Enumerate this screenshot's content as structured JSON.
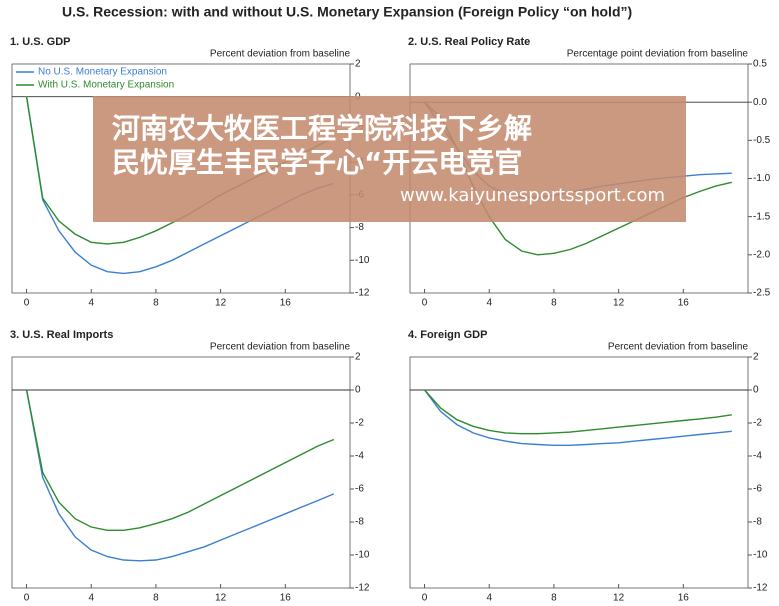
{
  "title": "U.S. Recession: with and without U.S. Monetary Expansion (Foreign Policy “on hold”)",
  "chart_data": [
    {
      "type": "line",
      "title": "1. U.S. GDP",
      "y_label": "Percent deviation from baseline",
      "x": [
        0,
        1,
        2,
        3,
        4,
        5,
        6,
        7,
        8,
        9,
        10,
        11,
        12,
        13,
        14,
        15,
        16,
        17,
        18,
        19
      ],
      "xlim": [
        -0.9,
        20
      ],
      "xticks": [
        0,
        4,
        8,
        12,
        16
      ],
      "ylim": [
        -12,
        2
      ],
      "yticks": [
        2,
        0,
        -2,
        -4,
        -6,
        -8,
        -10,
        -12
      ],
      "legend": "upper left",
      "series": [
        {
          "name": "No U.S. Monetary Expansion",
          "color": "#3a7fd0",
          "values": [
            0,
            -6.3,
            -8.2,
            -9.5,
            -10.3,
            -10.7,
            -10.8,
            -10.7,
            -10.4,
            -10.0,
            -9.5,
            -9.0,
            -8.5,
            -8.0,
            -7.5,
            -7.0,
            -6.5,
            -6.0,
            -5.6,
            -5.3
          ]
        },
        {
          "name": "With U.S. Monetary Expansion",
          "color": "#2e8b2e",
          "values": [
            0,
            -6.2,
            -7.6,
            -8.4,
            -8.9,
            -9.0,
            -8.9,
            -8.6,
            -8.2,
            -7.7,
            -7.2,
            -6.6,
            -6.0,
            -5.5,
            -5.0,
            -4.5,
            -4.0,
            -3.5,
            -3.0,
            -2.5
          ]
        }
      ]
    },
    {
      "type": "line",
      "title": "2. U.S. Real Policy Rate",
      "y_label": "Percentage point deviation from baseline",
      "x": [
        0,
        1,
        2,
        3,
        4,
        5,
        6,
        7,
        8,
        9,
        10,
        11,
        12,
        13,
        14,
        15,
        16,
        17,
        18,
        19
      ],
      "xlim": [
        -0.9,
        20
      ],
      "xticks": [
        0,
        4,
        8,
        12,
        16
      ],
      "ylim": [
        -2.5,
        0.5
      ],
      "yticks": [
        {
          "value": 0.5,
          "label": "0.5"
        },
        {
          "value": 0,
          "label": "0.0"
        },
        {
          "value": -0.5,
          "label": "-0.5"
        },
        {
          "value": -1,
          "label": "-1.0"
        },
        {
          "value": -1.5,
          "label": "-1.5"
        },
        {
          "value": -2,
          "label": "-2.0"
        },
        {
          "value": -2.5,
          "label": "-2.5"
        }
      ],
      "series": [
        {
          "color": "#3a7fd0",
          "values": [
            0,
            -0.3,
            -0.6,
            -0.9,
            -1.1,
            -1.2,
            -1.25,
            -1.25,
            -1.22,
            -1.18,
            -1.14,
            -1.1,
            -1.07,
            -1.04,
            -1.01,
            -0.99,
            -0.97,
            -0.95,
            -0.94,
            -0.93
          ]
        },
        {
          "color": "#2e8b2e",
          "values": [
            0,
            -0.2,
            -0.6,
            -1.1,
            -1.5,
            -1.8,
            -1.95,
            -2.0,
            -1.98,
            -1.93,
            -1.85,
            -1.75,
            -1.65,
            -1.55,
            -1.45,
            -1.35,
            -1.25,
            -1.17,
            -1.1,
            -1.05
          ]
        }
      ]
    },
    {
      "type": "line",
      "title": "3. U.S. Real Imports",
      "y_label": "Percent deviation from baseline",
      "x": [
        0,
        1,
        2,
        3,
        4,
        5,
        6,
        7,
        8,
        9,
        10,
        11,
        12,
        13,
        14,
        15,
        16,
        17,
        18,
        19
      ],
      "xlim": [
        -0.9,
        20
      ],
      "xticks": [
        0,
        4,
        8,
        12,
        16
      ],
      "ylim": [
        -12,
        2
      ],
      "yticks": [
        2,
        0,
        -2,
        -4,
        -6,
        -8,
        -10,
        -12
      ],
      "series": [
        {
          "color": "#3a7fd0",
          "values": [
            0,
            -5.3,
            -7.5,
            -8.9,
            -9.7,
            -10.1,
            -10.3,
            -10.35,
            -10.3,
            -10.1,
            -9.8,
            -9.5,
            -9.1,
            -8.7,
            -8.3,
            -7.9,
            -7.5,
            -7.1,
            -6.7,
            -6.3
          ]
        },
        {
          "color": "#2e8b2e",
          "values": [
            0,
            -5.0,
            -6.8,
            -7.8,
            -8.3,
            -8.5,
            -8.5,
            -8.35,
            -8.1,
            -7.8,
            -7.4,
            -6.9,
            -6.4,
            -5.9,
            -5.4,
            -4.9,
            -4.4,
            -3.9,
            -3.4,
            -3.0
          ]
        }
      ]
    },
    {
      "type": "line",
      "title": "4. Foreign GDP",
      "y_label": "Percent deviation from baseline",
      "x": [
        0,
        1,
        2,
        3,
        4,
        5,
        6,
        7,
        8,
        9,
        10,
        11,
        12,
        13,
        14,
        15,
        16,
        17,
        18,
        19
      ],
      "xlim": [
        -0.9,
        20
      ],
      "xticks": [
        0,
        4,
        8,
        12,
        16
      ],
      "ylim": [
        -12,
        2
      ],
      "yticks": [
        2,
        0,
        -2,
        -4,
        -6,
        -8,
        -10,
        -12
      ],
      "series": [
        {
          "color": "#3a7fd0",
          "values": [
            0,
            -1.3,
            -2.1,
            -2.6,
            -2.9,
            -3.1,
            -3.25,
            -3.3,
            -3.35,
            -3.35,
            -3.3,
            -3.25,
            -3.2,
            -3.1,
            -3.0,
            -2.9,
            -2.8,
            -2.7,
            -2.6,
            -2.5
          ]
        },
        {
          "color": "#2e8b2e",
          "values": [
            0,
            -1.1,
            -1.8,
            -2.2,
            -2.45,
            -2.6,
            -2.65,
            -2.65,
            -2.6,
            -2.55,
            -2.45,
            -2.35,
            -2.25,
            -2.15,
            -2.05,
            -1.95,
            -1.85,
            -1.75,
            -1.65,
            -1.5
          ]
        }
      ]
    }
  ],
  "watermark": {
    "lines": [
      "河南农大牧医工程学院科技下乡解",
      "民忧厚生丰民学子心“开云电竞官"
    ],
    "url": "www.kaiyunesportssport.com"
  }
}
